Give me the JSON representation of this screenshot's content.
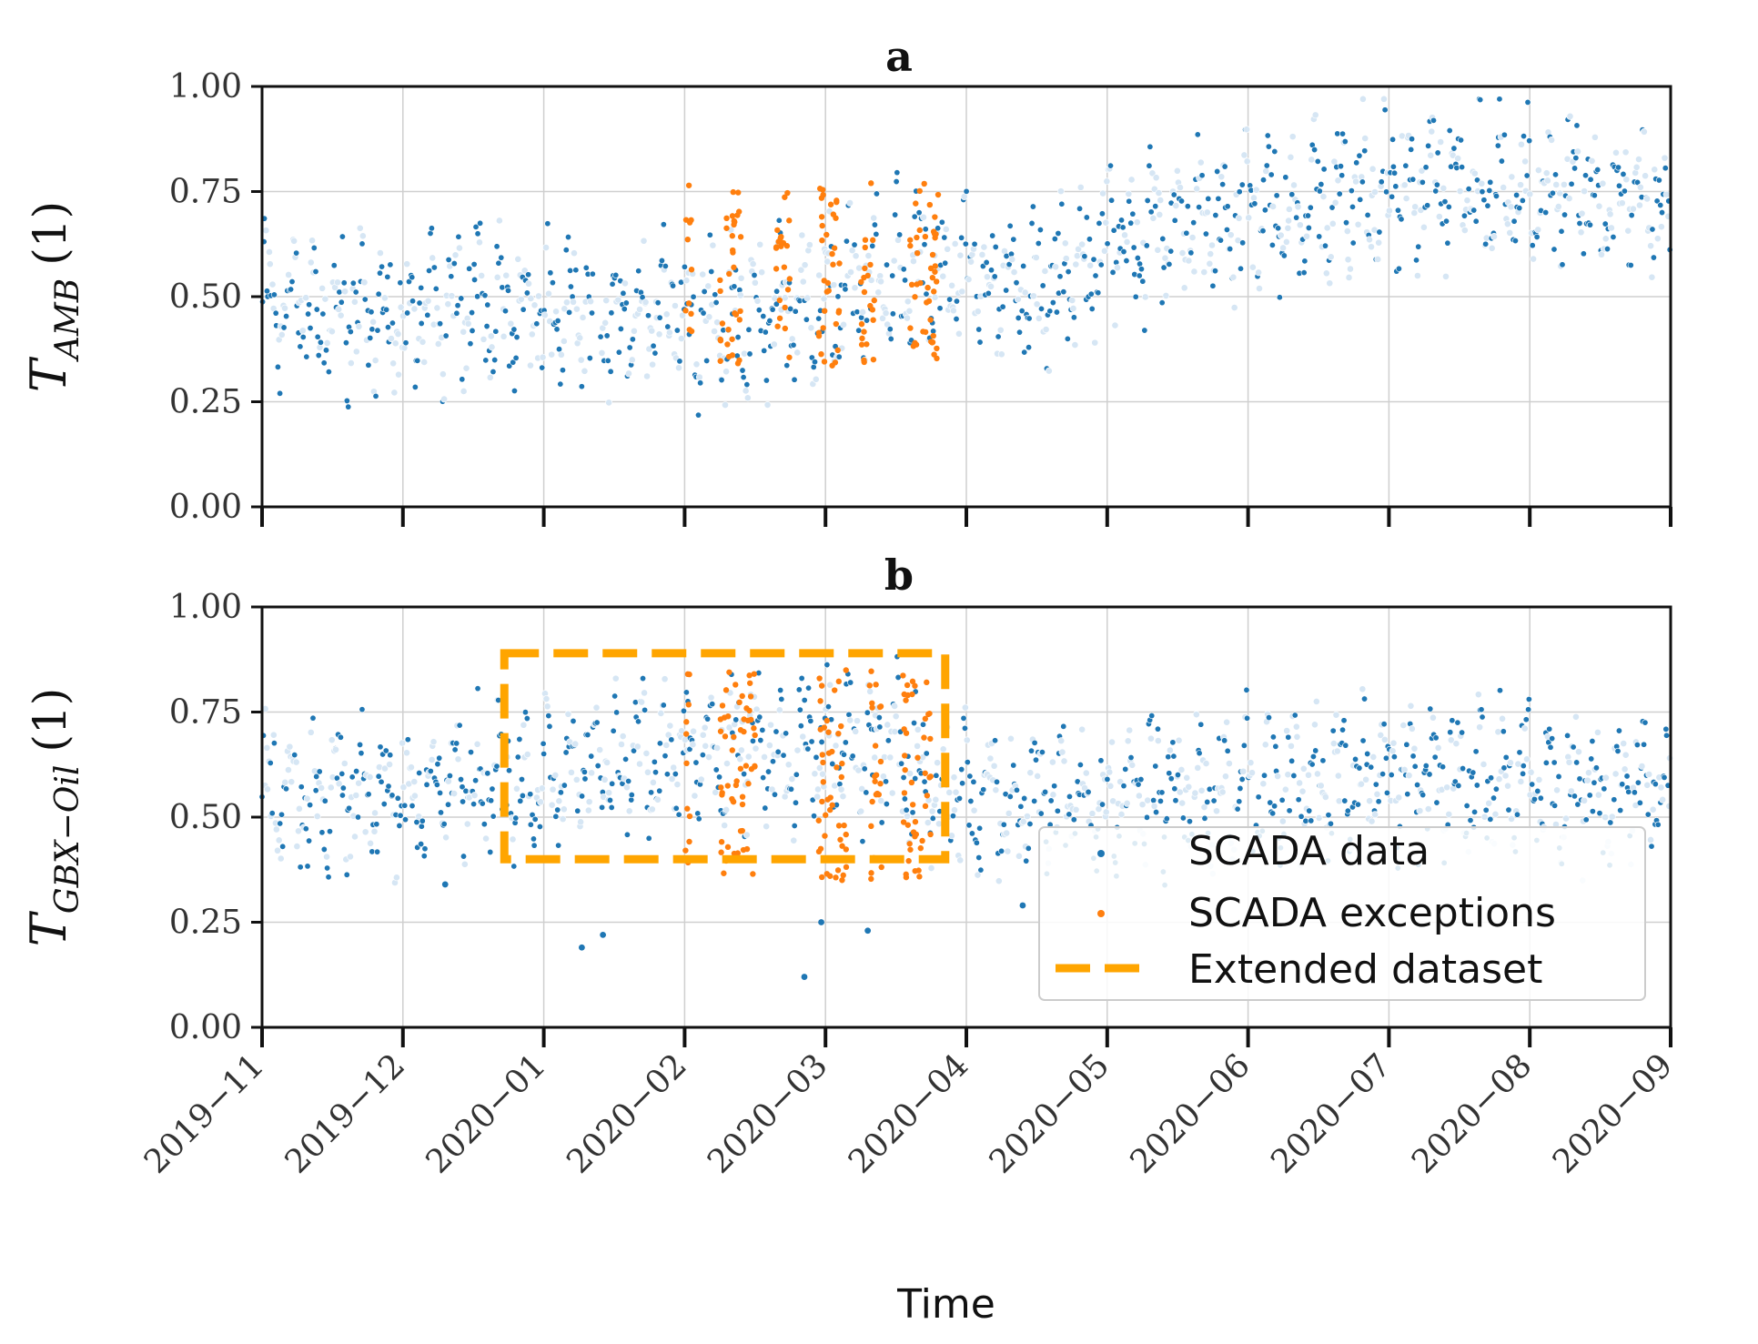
{
  "chart_data": [
    {
      "panel": "a",
      "type": "scatter",
      "title": "a",
      "ylabel": "T",
      "ylabel_sub": "AMB",
      "ylabel_unit": "(1)",
      "xlabel": "",
      "ylim": [
        0,
        1
      ],
      "yticks": [
        "0.00",
        "0.25",
        "0.50",
        "0.75",
        "1.00"
      ],
      "x_ticks": [
        "2019-11",
        "2019-12",
        "2020-01",
        "2020-02",
        "2020-03",
        "2020-04",
        "2020-05",
        "2020-06",
        "2020-07",
        "2020-08",
        "2020-09"
      ],
      "series": [
        {
          "name": "SCADA data",
          "color": "#1f77b4",
          "trend_months": [
            0,
            0.5,
            1,
            1.5,
            2,
            2.3,
            2.6,
            3,
            3.5,
            4,
            4.5,
            5,
            5.5,
            6,
            6.5,
            7,
            7.5,
            8,
            8.5,
            9,
            9.5,
            10
          ],
          "trend_values": [
            0.5,
            0.47,
            0.45,
            0.48,
            0.47,
            0.46,
            0.44,
            0.46,
            0.43,
            0.5,
            0.55,
            0.56,
            0.5,
            0.62,
            0.65,
            0.68,
            0.72,
            0.76,
            0.77,
            0.74,
            0.75,
            0.74
          ],
          "spread": 0.22,
          "gaps_months": [
            [
              2.35,
              2.4
            ]
          ]
        },
        {
          "name": "SCADA exceptions",
          "color": "#ff7f0e",
          "segments_months": [
            [
              3.0,
              3.05
            ],
            [
              3.25,
              3.4
            ],
            [
              3.65,
              3.75
            ],
            [
              3.95,
              4.1
            ],
            [
              4.25,
              4.35
            ],
            [
              4.6,
              4.8
            ]
          ],
          "value_range": [
            0.33,
            0.77
          ]
        }
      ]
    },
    {
      "panel": "b",
      "type": "scatter",
      "title": "b",
      "ylabel": "T",
      "ylabel_sub": "GBX−Oil",
      "ylabel_unit": "(1)",
      "xlabel": "Time",
      "ylim": [
        0,
        1
      ],
      "yticks": [
        "0.00",
        "0.25",
        "0.50",
        "0.75",
        "1.00"
      ],
      "x_ticks": [
        "2019-11",
        "2019-12",
        "2020-01",
        "2020-02",
        "2020-03",
        "2020-04",
        "2020-05",
        "2020-06",
        "2020-07",
        "2020-08",
        "2020-09"
      ],
      "series": [
        {
          "name": "SCADA data",
          "color": "#1f77b4",
          "trend_months": [
            0,
            1,
            1.7,
            2,
            2.5,
            3,
            3.5,
            4,
            4.5,
            4.9,
            5.5,
            6,
            7,
            8,
            9,
            10
          ],
          "trend_values": [
            0.55,
            0.56,
            0.58,
            0.6,
            0.63,
            0.65,
            0.66,
            0.65,
            0.66,
            0.55,
            0.53,
            0.56,
            0.57,
            0.59,
            0.58,
            0.56
          ],
          "spread": 0.2,
          "low_outliers": [
            [
              2.27,
              0.19
            ],
            [
              2.42,
              0.22
            ],
            [
              3.85,
              0.12
            ],
            [
              4.3,
              0.23
            ],
            [
              3.97,
              0.25
            ],
            [
              1.3,
              0.34
            ],
            [
              5.4,
              0.29
            ]
          ]
        },
        {
          "name": "SCADA exceptions",
          "color": "#ff7f0e",
          "segments_months": [
            [
              3.0,
              3.05
            ],
            [
              3.25,
              3.5
            ],
            [
              3.95,
              4.15
            ],
            [
              4.3,
              4.4
            ],
            [
              4.55,
              4.75
            ]
          ],
          "value_range": [
            0.35,
            0.85
          ]
        },
        {
          "name": "Extended dataset",
          "color": "#ffa500",
          "style": "dashed-rectangle",
          "x_range_months": [
            1.72,
            4.85
          ],
          "y_range": [
            0.4,
            0.89
          ]
        }
      ],
      "legend": {
        "position": "lower-right",
        "entries": [
          "SCADA data",
          "SCADA exceptions",
          "Extended dataset"
        ]
      }
    }
  ]
}
